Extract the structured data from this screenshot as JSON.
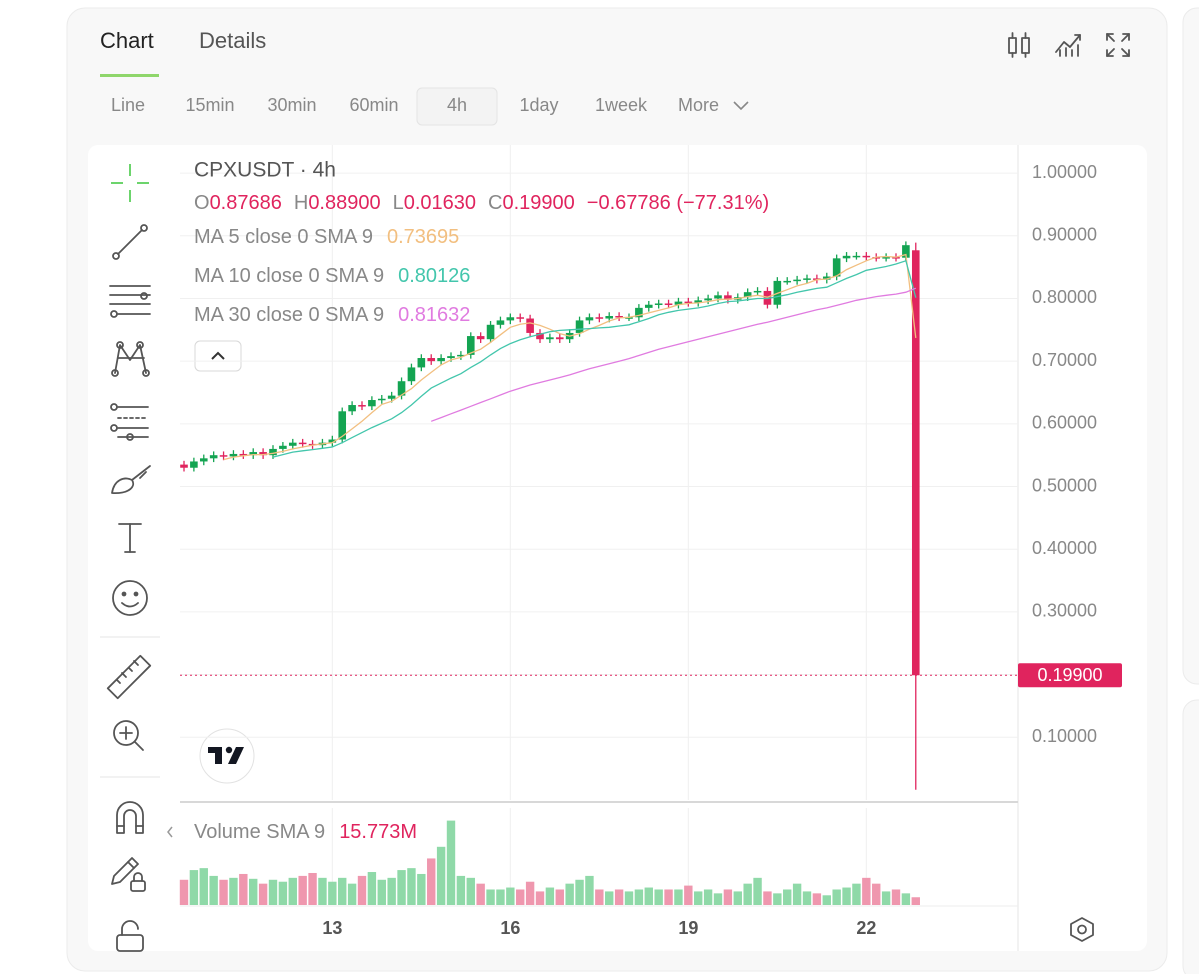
{
  "tabs": [
    "Chart",
    "Details"
  ],
  "intervals": [
    "Line",
    "15min",
    "30min",
    "60min",
    "4h",
    "1day",
    "1week",
    "More"
  ],
  "chart_data": {
    "type": "candlestick",
    "title": "CPXUSDT · 4h",
    "legend_ohlc": [
      {
        "key": "O",
        "value": "0.87686"
      },
      {
        "key": "H",
        "value": "0.88900"
      },
      {
        "key": "L",
        "value": "0.01630"
      },
      {
        "key": "C",
        "value": "0.19900"
      }
    ],
    "change": "−0.67786 (−77.31%)",
    "categories": [
      null,
      null,
      null,
      null,
      null,
      null,
      null,
      null,
      null,
      null,
      null,
      null,
      null,
      null,
      null,
      "13",
      null,
      null,
      null,
      null,
      null,
      null,
      null,
      null,
      null,
      null,
      null,
      null,
      null,
      null,
      null,
      null,
      null,
      "16",
      null,
      null,
      null,
      null,
      null,
      null,
      null,
      null,
      null,
      null,
      null,
      null,
      null,
      null,
      null,
      null,
      null,
      "19",
      null,
      null,
      null,
      null,
      null,
      null,
      null,
      null,
      null,
      null,
      null,
      null,
      null,
      null,
      null,
      null,
      null,
      "22",
      null,
      null,
      null,
      null,
      null
    ],
    "open": [
      0.535,
      0.53,
      0.54,
      0.545,
      0.55,
      0.548,
      0.552,
      0.55,
      0.555,
      0.55,
      0.56,
      0.565,
      0.57,
      0.568,
      0.566,
      0.57,
      0.575,
      0.62,
      0.63,
      0.628,
      0.638,
      0.64,
      0.645,
      0.668,
      0.69,
      0.705,
      0.7,
      0.705,
      0.708,
      0.71,
      0.74,
      0.735,
      0.758,
      0.765,
      0.77,
      0.768,
      0.745,
      0.735,
      0.738,
      0.735,
      0.745,
      0.765,
      0.77,
      0.768,
      0.772,
      0.77,
      0.77,
      0.785,
      0.79,
      0.792,
      0.79,
      0.795,
      0.793,
      0.797,
      0.8,
      0.805,
      0.798,
      0.802,
      0.81,
      0.812,
      0.79,
      0.828,
      0.828,
      0.83,
      0.832,
      0.83,
      0.835,
      0.864,
      0.868,
      0.868,
      0.866,
      0.865,
      0.866,
      0.865,
      0.87686
    ],
    "high": [
      0.541,
      0.546,
      0.551,
      0.556,
      0.556,
      0.558,
      0.558,
      0.561,
      0.561,
      0.566,
      0.571,
      0.576,
      0.576,
      0.574,
      0.576,
      0.581,
      0.626,
      0.636,
      0.636,
      0.644,
      0.646,
      0.651,
      0.674,
      0.696,
      0.711,
      0.711,
      0.711,
      0.714,
      0.716,
      0.746,
      0.746,
      0.764,
      0.771,
      0.776,
      0.776,
      0.774,
      0.751,
      0.744,
      0.744,
      0.751,
      0.771,
      0.776,
      0.776,
      0.778,
      0.778,
      0.776,
      0.791,
      0.796,
      0.798,
      0.798,
      0.801,
      0.801,
      0.803,
      0.806,
      0.811,
      0.811,
      0.808,
      0.816,
      0.818,
      0.818,
      0.834,
      0.834,
      0.836,
      0.838,
      0.838,
      0.841,
      0.87,
      0.874,
      0.874,
      0.874,
      0.872,
      0.872,
      0.872,
      0.891,
      0.889
    ],
    "low": [
      0.524,
      0.524,
      0.534,
      0.539,
      0.542,
      0.542,
      0.544,
      0.544,
      0.544,
      0.544,
      0.554,
      0.559,
      0.562,
      0.56,
      0.56,
      0.564,
      0.569,
      0.614,
      0.622,
      0.622,
      0.632,
      0.634,
      0.639,
      0.662,
      0.684,
      0.694,
      0.694,
      0.699,
      0.702,
      0.704,
      0.729,
      0.729,
      0.752,
      0.759,
      0.762,
      0.739,
      0.729,
      0.729,
      0.729,
      0.729,
      0.739,
      0.759,
      0.762,
      0.762,
      0.764,
      0.764,
      0.764,
      0.779,
      0.784,
      0.784,
      0.784,
      0.787,
      0.787,
      0.791,
      0.794,
      0.792,
      0.792,
      0.796,
      0.804,
      0.784,
      0.784,
      0.822,
      0.822,
      0.824,
      0.824,
      0.824,
      0.829,
      0.858,
      0.862,
      0.86,
      0.859,
      0.859,
      0.859,
      0.859,
      0.0163
    ],
    "close": [
      0.53,
      0.54,
      0.545,
      0.55,
      0.548,
      0.552,
      0.55,
      0.555,
      0.55,
      0.56,
      0.565,
      0.57,
      0.568,
      0.566,
      0.57,
      0.575,
      0.62,
      0.63,
      0.628,
      0.638,
      0.64,
      0.645,
      0.668,
      0.69,
      0.705,
      0.7,
      0.705,
      0.708,
      0.71,
      0.74,
      0.735,
      0.758,
      0.765,
      0.77,
      0.768,
      0.745,
      0.735,
      0.738,
      0.735,
      0.745,
      0.765,
      0.77,
      0.768,
      0.772,
      0.77,
      0.77,
      0.785,
      0.79,
      0.792,
      0.79,
      0.795,
      0.793,
      0.797,
      0.8,
      0.805,
      0.798,
      0.802,
      0.81,
      0.812,
      0.79,
      0.828,
      0.828,
      0.83,
      0.832,
      0.83,
      0.835,
      0.864,
      0.868,
      0.868,
      0.866,
      0.865,
      0.866,
      0.865,
      0.885,
      0.199
    ],
    "volume": [
      13,
      18,
      19,
      15,
      13,
      14,
      16,
      13.5,
      11,
      13,
      12,
      14,
      15,
      16.5,
      14,
      12,
      14,
      11,
      15,
      17,
      13,
      14,
      18,
      19,
      16,
      24,
      30,
      43.5,
      15,
      14,
      11,
      8,
      8,
      9,
      8,
      12,
      7,
      9,
      8,
      11,
      13,
      15,
      8,
      7,
      8,
      7,
      8,
      9,
      8,
      8,
      8,
      10,
      7,
      8,
      6,
      8,
      7,
      11,
      14,
      7,
      6,
      8,
      11,
      7,
      6,
      5,
      8,
      9,
      11,
      14,
      11,
      7,
      8,
      6,
      4
    ],
    "up_color": "#14a452",
    "down_color": "#e0245e",
    "volume_up_color": "#8fd9a8",
    "volume_down_color": "#ef97ae",
    "ylim": [
      0,
      1.04
    ],
    "yticks": [
      {
        "value": 0.1,
        "label": "0.10000"
      },
      {
        "value": 0.2,
        "label": "0.20000"
      },
      {
        "value": 0.3,
        "label": "0.30000"
      },
      {
        "value": 0.4,
        "label": "0.40000"
      },
      {
        "value": 0.5,
        "label": "0.50000"
      },
      {
        "value": 0.6,
        "label": "0.60000"
      },
      {
        "value": 0.7,
        "label": "0.70000"
      },
      {
        "value": 0.8,
        "label": "0.80000"
      },
      {
        "value": 0.9,
        "label": "0.90000"
      },
      {
        "value": 1.0,
        "label": "1.00000"
      }
    ],
    "volume_ylim": [
      0,
      50
    ],
    "grid": true,
    "last_price": {
      "value": 0.199,
      "label": "0.19900"
    },
    "volume_label": "Volume SMA 9",
    "volume_value_label": "15.773M",
    "series": [
      {
        "name": "MA 5 close 0 SMA 9",
        "color": "#f2bf80",
        "last_label": "0.73695",
        "values": [
          null,
          null,
          null,
          null,
          0.543,
          0.547,
          0.549,
          0.551,
          0.551,
          0.553,
          0.556,
          0.56,
          0.563,
          0.566,
          0.568,
          0.57,
          0.58,
          0.592,
          0.604,
          0.618,
          0.631,
          0.636,
          0.646,
          0.656,
          0.67,
          0.682,
          0.694,
          0.702,
          0.706,
          0.713,
          0.719,
          0.73,
          0.742,
          0.754,
          0.759,
          0.761,
          0.757,
          0.751,
          0.744,
          0.74,
          0.744,
          0.751,
          0.757,
          0.764,
          0.769,
          0.77,
          0.773,
          0.777,
          0.781,
          0.785,
          0.79,
          0.792,
          0.793,
          0.795,
          0.798,
          0.799,
          0.8,
          0.803,
          0.805,
          0.802,
          0.808,
          0.814,
          0.82,
          0.824,
          0.83,
          0.831,
          0.836,
          0.846,
          0.853,
          0.86,
          0.866,
          0.867,
          0.866,
          0.87,
          0.73695
        ]
      },
      {
        "name": "MA 10 close 0 SMA 9",
        "color": "#43c6ac",
        "last_label": "0.80126",
        "values": [
          null,
          null,
          null,
          null,
          null,
          null,
          null,
          null,
          null,
          0.547,
          0.551,
          0.555,
          0.557,
          0.559,
          0.561,
          0.563,
          0.57,
          0.578,
          0.586,
          0.594,
          0.601,
          0.608,
          0.618,
          0.63,
          0.644,
          0.657,
          0.665,
          0.673,
          0.68,
          0.69,
          0.699,
          0.71,
          0.72,
          0.728,
          0.734,
          0.739,
          0.743,
          0.747,
          0.749,
          0.75,
          0.751,
          0.752,
          0.753,
          0.754,
          0.756,
          0.758,
          0.763,
          0.768,
          0.774,
          0.778,
          0.781,
          0.783,
          0.785,
          0.788,
          0.792,
          0.795,
          0.796,
          0.798,
          0.8,
          0.8,
          0.803,
          0.806,
          0.81,
          0.813,
          0.816,
          0.818,
          0.825,
          0.832,
          0.838,
          0.845,
          0.848,
          0.851,
          0.855,
          0.86,
          0.80126
        ]
      },
      {
        "name": "MA 30 close 0 SMA 9",
        "color": "#e07be0",
        "last_label": "0.81632",
        "values": [
          null,
          null,
          null,
          null,
          null,
          null,
          null,
          null,
          null,
          null,
          null,
          null,
          null,
          null,
          null,
          null,
          null,
          null,
          null,
          null,
          null,
          null,
          null,
          null,
          null,
          0.604,
          0.61,
          0.616,
          0.622,
          0.628,
          0.634,
          0.64,
          0.646,
          0.652,
          0.657,
          0.662,
          0.666,
          0.67,
          0.674,
          0.678,
          0.683,
          0.688,
          0.692,
          0.696,
          0.7,
          0.704,
          0.709,
          0.714,
          0.719,
          0.723,
          0.727,
          0.731,
          0.735,
          0.739,
          0.743,
          0.747,
          0.751,
          0.755,
          0.759,
          0.762,
          0.766,
          0.77,
          0.774,
          0.778,
          0.782,
          0.785,
          0.789,
          0.793,
          0.797,
          0.8,
          0.803,
          0.805,
          0.807,
          0.81,
          0.81632
        ]
      }
    ]
  }
}
